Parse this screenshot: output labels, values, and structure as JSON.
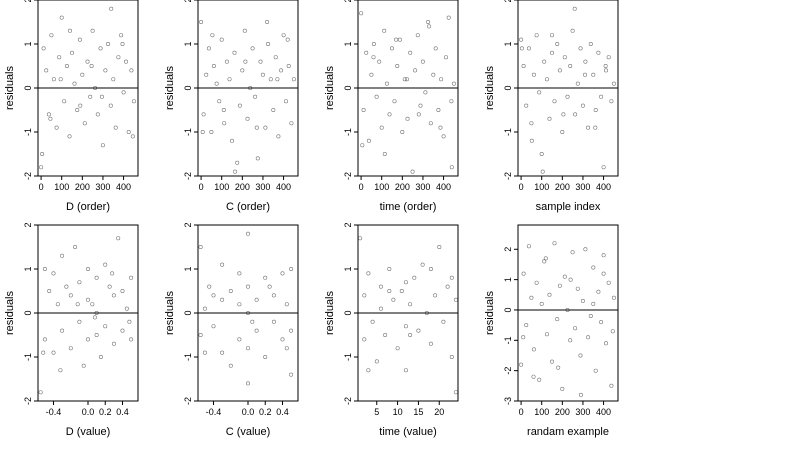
{
  "panels": [
    {
      "xlabel": "D (order)",
      "ylabel": "residuals",
      "xlim": [
        -15,
        470
      ],
      "ylim": [
        -2,
        2
      ],
      "xticks": [
        "0",
        "100",
        "200",
        "300",
        "400"
      ],
      "yticks": [
        "-2",
        "-1",
        "0",
        "1",
        "2"
      ]
    },
    {
      "xlabel": "C (order)",
      "ylabel": "residuals",
      "xlim": [
        -15,
        470
      ],
      "ylim": [
        -2,
        2
      ],
      "xticks": [
        "0",
        "100",
        "200",
        "300",
        "400"
      ],
      "yticks": [
        "-2",
        "-1",
        "0",
        "1",
        "2"
      ]
    },
    {
      "xlabel": "time (order)",
      "ylabel": "residuals",
      "xlim": [
        -15,
        470
      ],
      "ylim": [
        -2,
        2
      ],
      "xticks": [
        "0",
        "100",
        "200",
        "300",
        "400"
      ],
      "yticks": [
        "-2",
        "-1",
        "0",
        "1",
        "2"
      ]
    },
    {
      "xlabel": "sample index",
      "ylabel": "residuals",
      "xlim": [
        -15,
        470
      ],
      "ylim": [
        -2,
        2
      ],
      "xticks": [
        "0",
        "100",
        "200",
        "300",
        "400"
      ],
      "yticks": [
        "-2",
        "-1",
        "0",
        "1",
        "2"
      ]
    },
    {
      "xlabel": "D (value)",
      "ylabel": "residuals",
      "xlim": [
        -0.58,
        0.58
      ],
      "ylim": [
        -2,
        2
      ],
      "xticks": [
        "-0.4",
        "0.0",
        "0.2",
        "0.4"
      ],
      "yticks": [
        "-2",
        "-1",
        "0",
        "1",
        "2"
      ]
    },
    {
      "xlabel": "C (value)",
      "ylabel": "residuals",
      "xlim": [
        -0.58,
        0.58
      ],
      "ylim": [
        -2,
        2
      ],
      "xticks": [
        "-0.4",
        "0.0",
        "0.2",
        "0.4"
      ],
      "yticks": [
        "-2",
        "-1",
        "0",
        "1",
        "2"
      ]
    },
    {
      "xlabel": "time (value)",
      "ylabel": "residuals",
      "xlim": [
        0.5,
        24.5
      ],
      "ylim": [
        -2,
        2
      ],
      "xticks": [
        "5",
        "10",
        "15",
        "20"
      ],
      "yticks": [
        "-2",
        "-1",
        "0",
        "1",
        "2"
      ]
    },
    {
      "xlabel": "randam example",
      "ylabel": "residuals",
      "xlim": [
        -15,
        470
      ],
      "ylim": [
        -3,
        2.8
      ],
      "xticks": [
        "0",
        "100",
        "200",
        "300",
        "400"
      ],
      "yticks": [
        "-3",
        "-2",
        "-1",
        "0",
        "1",
        "2"
      ]
    }
  ],
  "chart_data": [
    {
      "type": "scatter",
      "xlabel": "D (order)",
      "ylabel": "residuals",
      "xlim": [
        -15,
        470
      ],
      "ylim": [
        -2,
        2
      ],
      "reference_line_y": 0,
      "grid": false,
      "series": [
        {
          "x": [
            0,
            12,
            25,
            38,
            50,
            62,
            75,
            88,
            100,
            112,
            125,
            138,
            150,
            162,
            175,
            188,
            200,
            212,
            225,
            238,
            250,
            262,
            275,
            288,
            300,
            312,
            325,
            338,
            350,
            362,
            375,
            388,
            400,
            412,
            425,
            438,
            450,
            5,
            45,
            95,
            140,
            190,
            245,
            295,
            340,
            395,
            445
          ],
          "y": [
            -1.8,
            0.9,
            0.4,
            -0.6,
            1.2,
            0.2,
            -0.9,
            0.7,
            1.6,
            -0.3,
            0.5,
            -1.1,
            0.8,
            0.1,
            -0.5,
            1.1,
            0.3,
            -0.8,
            0.6,
            -0.2,
            1.3,
            0.0,
            -0.6,
            0.9,
            -1.3,
            0.4,
            1.0,
            -0.4,
            0.2,
            -0.9,
            0.7,
            1.2,
            -0.1,
            0.6,
            -1.0,
            0.4,
            -0.3,
            -1.5,
            -0.7,
            0.2,
            1.3,
            -0.4,
            0.5,
            -0.2,
            1.8,
            1.0,
            -1.1
          ]
        }
      ]
    },
    {
      "type": "scatter",
      "xlabel": "C (order)",
      "ylabel": "residuals",
      "xlim": [
        -15,
        470
      ],
      "ylim": [
        -2,
        2
      ],
      "reference_line_y": 0,
      "grid": false,
      "series": [
        {
          "x": [
            0,
            12,
            25,
            38,
            50,
            62,
            75,
            88,
            100,
            112,
            125,
            138,
            150,
            162,
            175,
            188,
            200,
            212,
            225,
            238,
            250,
            262,
            275,
            288,
            300,
            312,
            325,
            338,
            350,
            362,
            375,
            388,
            400,
            412,
            425,
            438,
            450,
            8,
            55,
            110,
            165,
            215,
            270,
            320,
            370,
            420
          ],
          "y": [
            1.5,
            -0.6,
            0.3,
            0.9,
            -1.0,
            0.5,
            0.1,
            -0.3,
            1.1,
            -0.8,
            0.6,
            0.2,
            -1.2,
            0.8,
            -1.7,
            -0.4,
            0.4,
            1.3,
            -0.7,
            0.0,
            0.9,
            -0.2,
            -1.6,
            0.6,
            0.3,
            -0.9,
            1.0,
            0.2,
            -0.5,
            0.7,
            -1.1,
            0.4,
            1.2,
            -0.3,
            0.5,
            -0.8,
            0.2,
            -1.0,
            1.2,
            -0.5,
            -1.9,
            0.6,
            -0.9,
            1.5,
            0.2,
            1.1
          ]
        }
      ]
    },
    {
      "type": "scatter",
      "xlabel": "time (order)",
      "ylabel": "residuals",
      "xlim": [
        -15,
        470
      ],
      "ylim": [
        -2,
        2
      ],
      "reference_line_y": 0,
      "grid": false,
      "series": [
        {
          "x": [
            0,
            12,
            25,
            38,
            50,
            62,
            75,
            88,
            100,
            112,
            125,
            138,
            150,
            162,
            175,
            188,
            200,
            212,
            225,
            238,
            250,
            262,
            275,
            288,
            300,
            312,
            325,
            338,
            350,
            362,
            375,
            388,
            400,
            412,
            425,
            438,
            450,
            6,
            60,
            115,
            170,
            222,
            280,
            330,
            385,
            440
          ],
          "y": [
            1.7,
            -0.5,
            0.8,
            -1.2,
            0.3,
            1.0,
            -0.2,
            0.6,
            -0.9,
            1.3,
            0.1,
            -0.6,
            0.9,
            -0.3,
            0.5,
            1.1,
            -1.0,
            0.2,
            -0.7,
            0.8,
            -1.9,
            0.4,
            1.2,
            -0.4,
            0.6,
            -0.1,
            1.5,
            -0.8,
            0.3,
            0.9,
            -0.5,
            0.2,
            -1.1,
            0.7,
            1.6,
            -0.3,
            0.1,
            -1.3,
            0.7,
            -1.5,
            1.1,
            0.2,
            -0.6,
            1.4,
            -0.9,
            -1.8
          ]
        }
      ]
    },
    {
      "type": "scatter",
      "xlabel": "sample index",
      "ylabel": "residuals",
      "xlim": [
        -15,
        470
      ],
      "ylim": [
        -2,
        2
      ],
      "reference_line_y": 0,
      "grid": false,
      "series": [
        {
          "x": [
            0,
            12,
            25,
            38,
            50,
            62,
            75,
            88,
            100,
            112,
            125,
            138,
            150,
            162,
            175,
            188,
            200,
            212,
            225,
            238,
            250,
            262,
            275,
            288,
            300,
            312,
            325,
            338,
            350,
            362,
            375,
            388,
            400,
            412,
            425,
            438,
            450,
            4,
            52,
            105,
            150,
            205,
            260,
            310,
            360,
            410
          ],
          "y": [
            1.1,
            0.5,
            -0.4,
            0.9,
            -0.8,
            0.3,
            1.2,
            -0.1,
            -1.5,
            0.6,
            0.2,
            -0.7,
            0.8,
            -0.3,
            1.0,
            0.4,
            -1.0,
            0.7,
            -0.2,
            0.5,
            1.3,
            -0.6,
            0.1,
            0.9,
            -0.4,
            0.6,
            -0.9,
            1.0,
            0.3,
            -0.5,
            0.8,
            -0.2,
            -1.8,
            0.4,
            0.7,
            -0.3,
            0.1,
            0.9,
            -1.2,
            -1.9,
            1.2,
            -0.6,
            1.8,
            0.3,
            -0.9,
            0.5
          ]
        }
      ]
    },
    {
      "type": "scatter",
      "xlabel": "D (value)",
      "ylabel": "residuals",
      "xlim": [
        -0.58,
        0.58
      ],
      "ylim": [
        -2,
        2
      ],
      "reference_line_y": 0,
      "grid": false,
      "series": [
        {
          "x": [
            -0.55,
            -0.5,
            -0.5,
            -0.45,
            -0.4,
            -0.4,
            -0.35,
            -0.3,
            -0.3,
            -0.25,
            -0.2,
            -0.2,
            -0.15,
            -0.1,
            -0.1,
            -0.05,
            0.0,
            0.0,
            0.0,
            0.05,
            0.1,
            0.1,
            0.1,
            0.15,
            0.2,
            0.2,
            0.25,
            0.3,
            0.3,
            0.35,
            0.4,
            0.4,
            0.45,
            0.5,
            0.5,
            -0.52,
            -0.32,
            -0.12,
            0.08,
            0.28,
            0.48
          ],
          "y": [
            -1.8,
            1.0,
            -0.6,
            0.5,
            0.9,
            -0.9,
            0.2,
            1.3,
            -0.4,
            0.6,
            -0.8,
            0.4,
            1.5,
            -0.2,
            0.7,
            -1.2,
            0.3,
            -0.6,
            1.0,
            0.2,
            -0.5,
            0.8,
            0.0,
            -1.0,
            1.1,
            -0.3,
            0.6,
            -0.7,
            0.4,
            1.7,
            -0.4,
            0.5,
            0.1,
            -0.6,
            0.8,
            -0.9,
            -1.3,
            0.2,
            -0.1,
            0.9,
            -0.2
          ]
        }
      ]
    },
    {
      "type": "scatter",
      "xlabel": "C (value)",
      "ylabel": "residuals",
      "xlim": [
        -0.58,
        0.58
      ],
      "ylim": [
        -2,
        2
      ],
      "reference_line_y": 0,
      "grid": false,
      "series": [
        {
          "x": [
            -0.55,
            -0.55,
            -0.5,
            -0.45,
            -0.4,
            -0.4,
            -0.3,
            -0.3,
            -0.2,
            -0.2,
            -0.1,
            -0.1,
            0.0,
            0.0,
            0.0,
            0.0,
            0.0,
            0.1,
            0.1,
            0.2,
            0.2,
            0.3,
            0.3,
            0.4,
            0.4,
            0.45,
            0.5,
            0.5,
            0.5,
            -0.5,
            -0.3,
            -0.1,
            0.05,
            0.25,
            0.45
          ],
          "y": [
            1.5,
            -0.5,
            0.1,
            0.6,
            -0.3,
            0.4,
            1.1,
            -0.9,
            0.5,
            -1.2,
            0.2,
            -0.6,
            1.8,
            0.6,
            0.0,
            -0.8,
            -1.6,
            0.3,
            -0.4,
            0.8,
            -1.0,
            0.4,
            -0.2,
            0.9,
            -0.6,
            0.2,
            1.0,
            -0.4,
            -1.4,
            -0.9,
            0.3,
            0.9,
            -0.2,
            0.6,
            -0.8
          ]
        }
      ]
    },
    {
      "type": "scatter",
      "xlabel": "time (value)",
      "ylabel": "residuals",
      "xlim": [
        0.5,
        24.5
      ],
      "ylim": [
        -2,
        2
      ],
      "reference_line_y": 0,
      "grid": false,
      "series": [
        {
          "x": [
            1,
            2,
            2,
            3,
            4,
            5,
            6,
            6,
            7,
            8,
            9,
            10,
            11,
            12,
            12,
            12,
            13,
            14,
            15,
            16,
            17,
            18,
            19,
            20,
            21,
            22,
            23,
            24,
            24,
            3,
            8,
            13,
            18,
            23
          ],
          "y": [
            1.7,
            0.4,
            -0.6,
            0.9,
            -0.2,
            -1.1,
            0.6,
            0.1,
            -0.5,
            1.0,
            0.3,
            -0.8,
            0.5,
            0.7,
            -0.3,
            -1.3,
            0.2,
            0.8,
            -0.4,
            1.1,
            0.0,
            -0.7,
            0.4,
            1.5,
            -0.2,
            0.6,
            -1.0,
            0.3,
            -1.8,
            -1.3,
            0.5,
            -0.5,
            1.0,
            0.8
          ]
        }
      ]
    },
    {
      "type": "scatter",
      "xlabel": "randam example",
      "ylabel": "residuals",
      "xlim": [
        -15,
        470
      ],
      "ylim": [
        -3,
        2.8
      ],
      "reference_line_y": 0,
      "grid": false,
      "series": [
        {
          "x": [
            0,
            12,
            25,
            38,
            50,
            62,
            75,
            88,
            100,
            112,
            125,
            138,
            150,
            162,
            175,
            188,
            200,
            212,
            225,
            238,
            250,
            262,
            275,
            288,
            300,
            312,
            325,
            338,
            350,
            362,
            375,
            388,
            400,
            412,
            425,
            438,
            450,
            10,
            60,
            120,
            180,
            240,
            290,
            350,
            400,
            445
          ],
          "y": [
            -1.8,
            1.2,
            -0.5,
            2.1,
            0.4,
            -1.3,
            0.9,
            -2.3,
            0.2,
            1.6,
            -0.8,
            0.5,
            -1.7,
            2.2,
            -0.3,
            0.8,
            -2.6,
            1.1,
            0.0,
            -1.0,
            1.9,
            -0.6,
            0.7,
            -1.5,
            0.3,
            2.0,
            -0.9,
            -0.2,
            1.4,
            -2.0,
            0.6,
            -0.4,
            1.2,
            -1.1,
            0.9,
            -2.5,
            0.4,
            -0.9,
            -2.2,
            1.7,
            -1.9,
            1.0,
            -2.8,
            0.2,
            1.8,
            -0.7
          ]
        }
      ]
    }
  ]
}
